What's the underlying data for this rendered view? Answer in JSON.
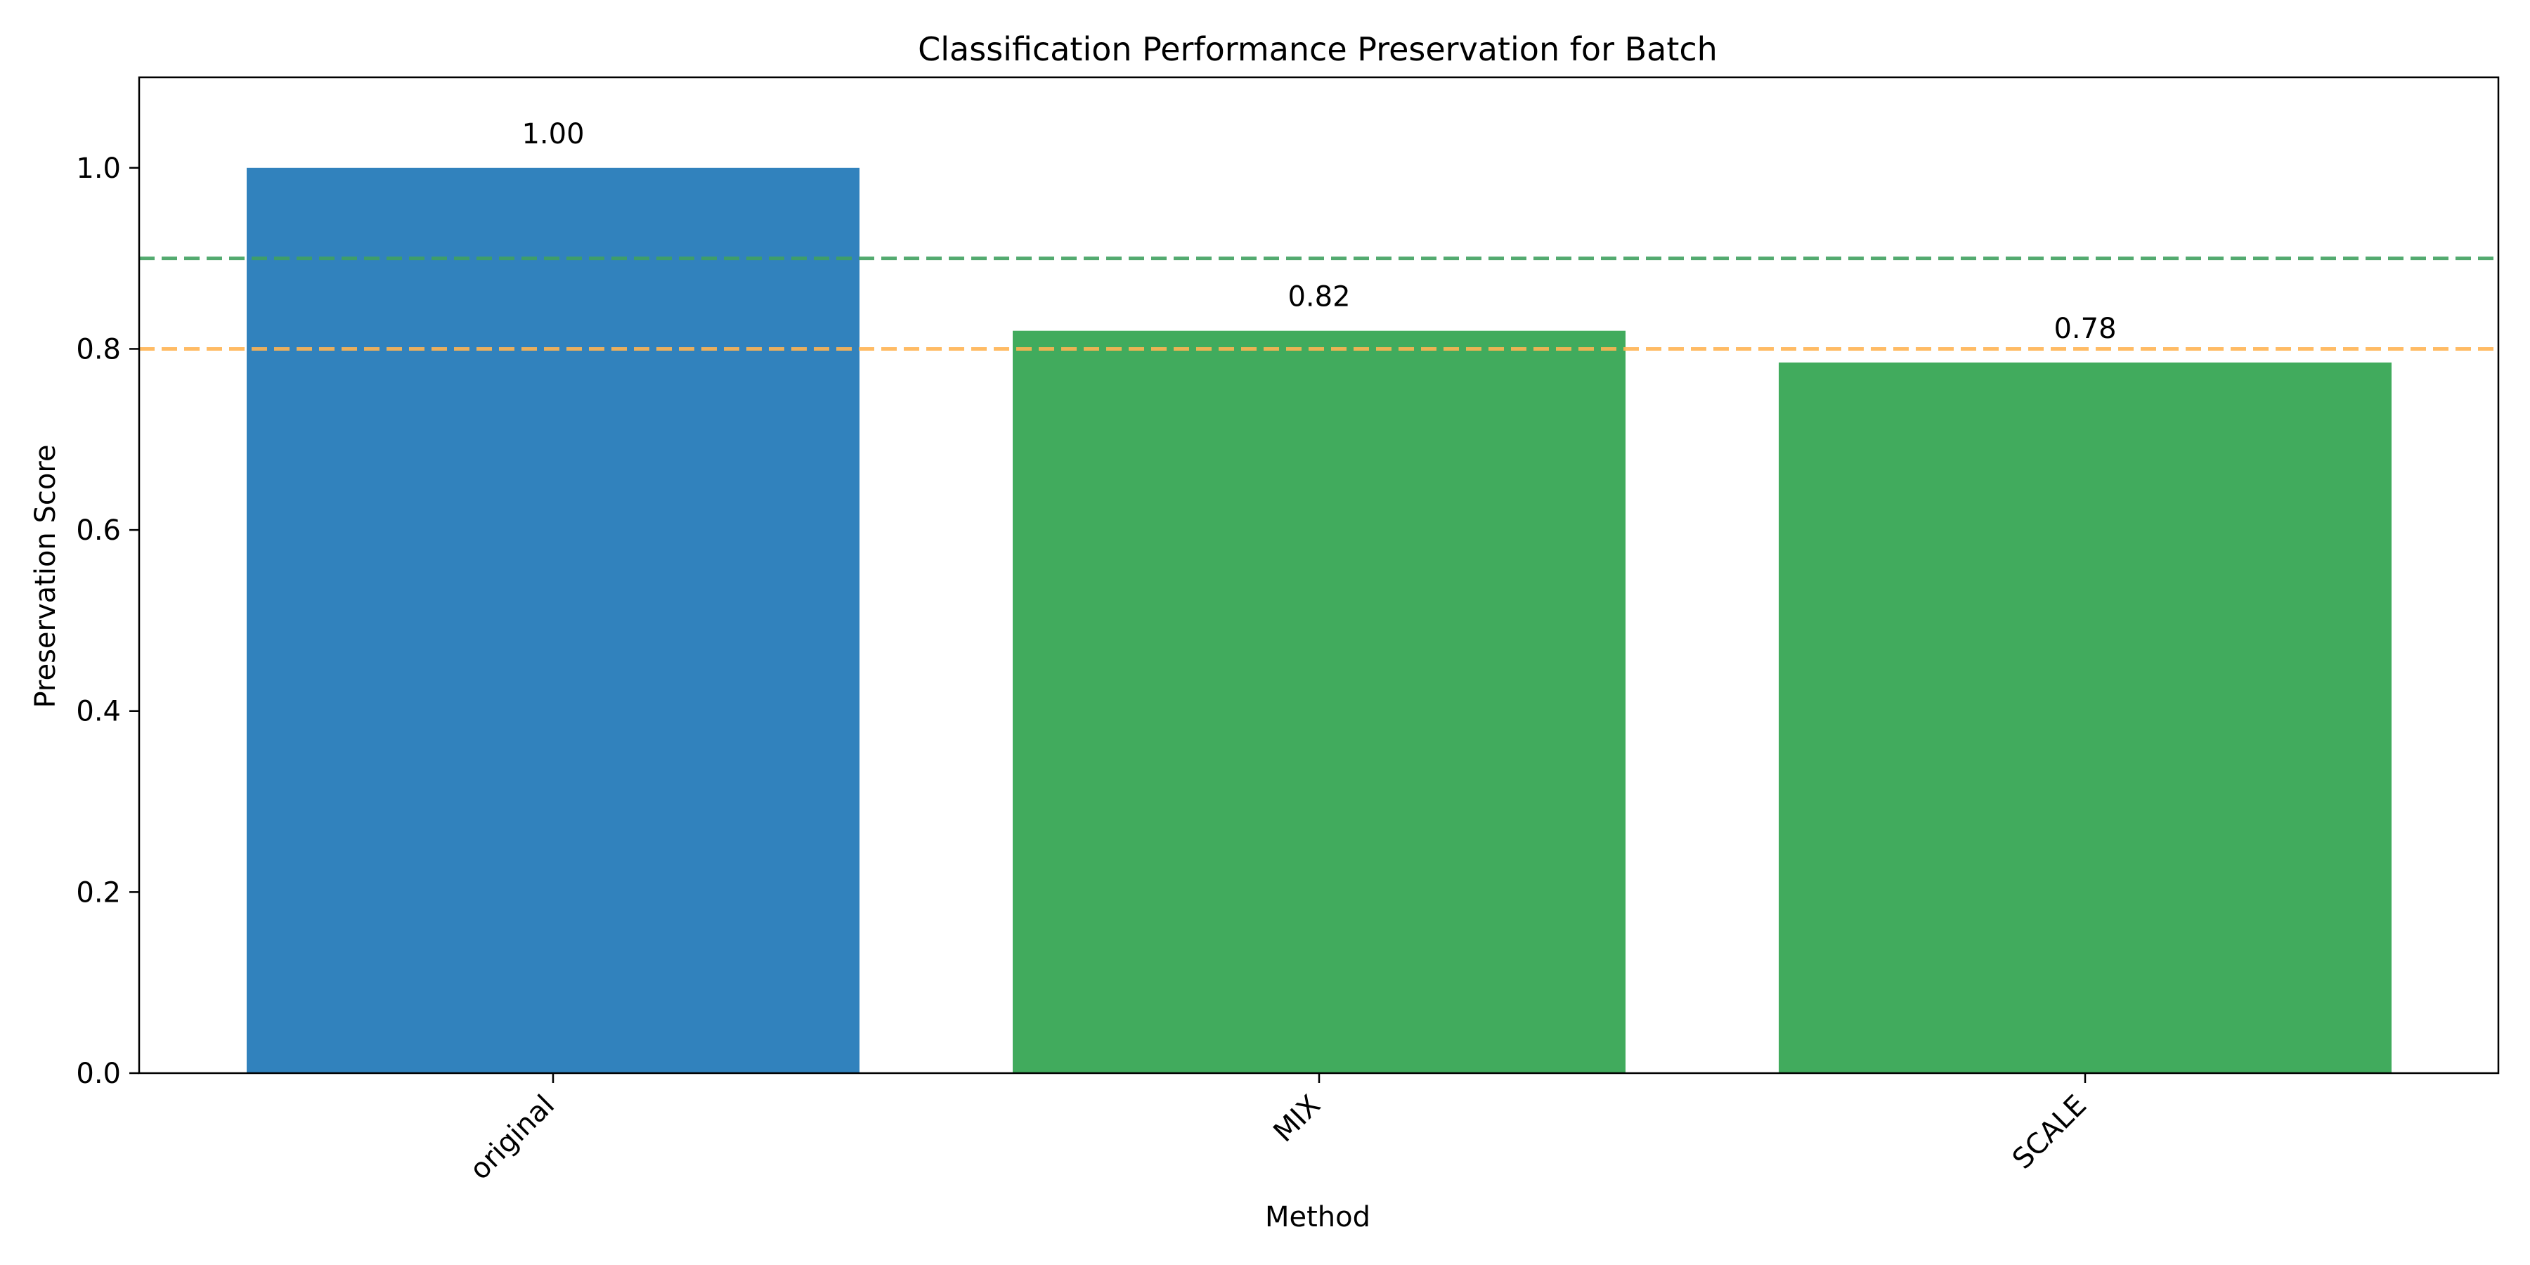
{
  "chart_data": {
    "type": "bar",
    "title": "Classification Performance Preservation for Batch",
    "xlabel": "Method",
    "ylabel": "Preservation Score",
    "categories": [
      "original",
      "MIX",
      "SCALE"
    ],
    "values": [
      1.0,
      0.82,
      0.785
    ],
    "value_labels": [
      "1.00",
      "0.82",
      "0.78"
    ],
    "bar_colors": [
      "#3182bd",
      "#41ab5d",
      "#41ab5d"
    ],
    "ylim": [
      0,
      1.1
    ],
    "yticks": [
      0.0,
      0.2,
      0.4,
      0.6,
      0.8,
      1.0
    ],
    "ytick_labels": [
      "0.0",
      "0.2",
      "0.4",
      "0.6",
      "0.8",
      "1.0"
    ],
    "reference_lines": [
      {
        "value": 0.9,
        "color": "#41a160",
        "style": "dashed"
      },
      {
        "value": 0.8,
        "color": "#ffb454",
        "style": "dashed"
      }
    ],
    "grid": false,
    "xtick_rotation": 45
  }
}
